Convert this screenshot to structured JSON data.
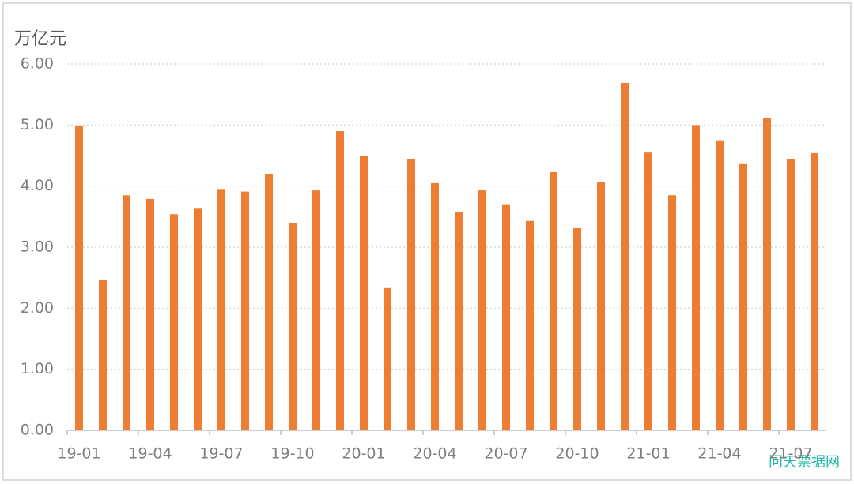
{
  "chart_data": {
    "type": "bar",
    "y_label": "万亿元",
    "watermark": "问天票据网",
    "categories": [
      "19-01",
      null,
      null,
      "19-04",
      null,
      null,
      "19-07",
      null,
      null,
      "19-10",
      null,
      null,
      "20-01",
      null,
      null,
      "20-04",
      null,
      null,
      "20-07",
      null,
      null,
      "20-10",
      null,
      null,
      "21-01",
      null,
      null,
      "21-04",
      null,
      null,
      "21-07",
      null
    ],
    "values": [
      4.99,
      2.47,
      3.85,
      3.79,
      3.54,
      3.63,
      3.94,
      3.91,
      4.19,
      3.4,
      3.93,
      4.9,
      4.5,
      2.33,
      4.44,
      4.05,
      3.58,
      3.93,
      3.69,
      3.43,
      4.23,
      3.31,
      4.07,
      5.69,
      4.55,
      3.85,
      5.0,
      4.75,
      4.36,
      5.12,
      4.44,
      4.54
    ],
    "color": "#ed7d31",
    "ylim": [
      0,
      6
    ],
    "yticks": [
      {
        "value": 0,
        "label": "0.00"
      },
      {
        "value": 1,
        "label": "1.00"
      },
      {
        "value": 2,
        "label": "2.00"
      },
      {
        "value": 3,
        "label": "3.00"
      },
      {
        "value": 4,
        "label": "4.00"
      },
      {
        "value": 5,
        "label": "5.00"
      },
      {
        "value": 6,
        "label": "6.00"
      }
    ],
    "grid": true
  }
}
